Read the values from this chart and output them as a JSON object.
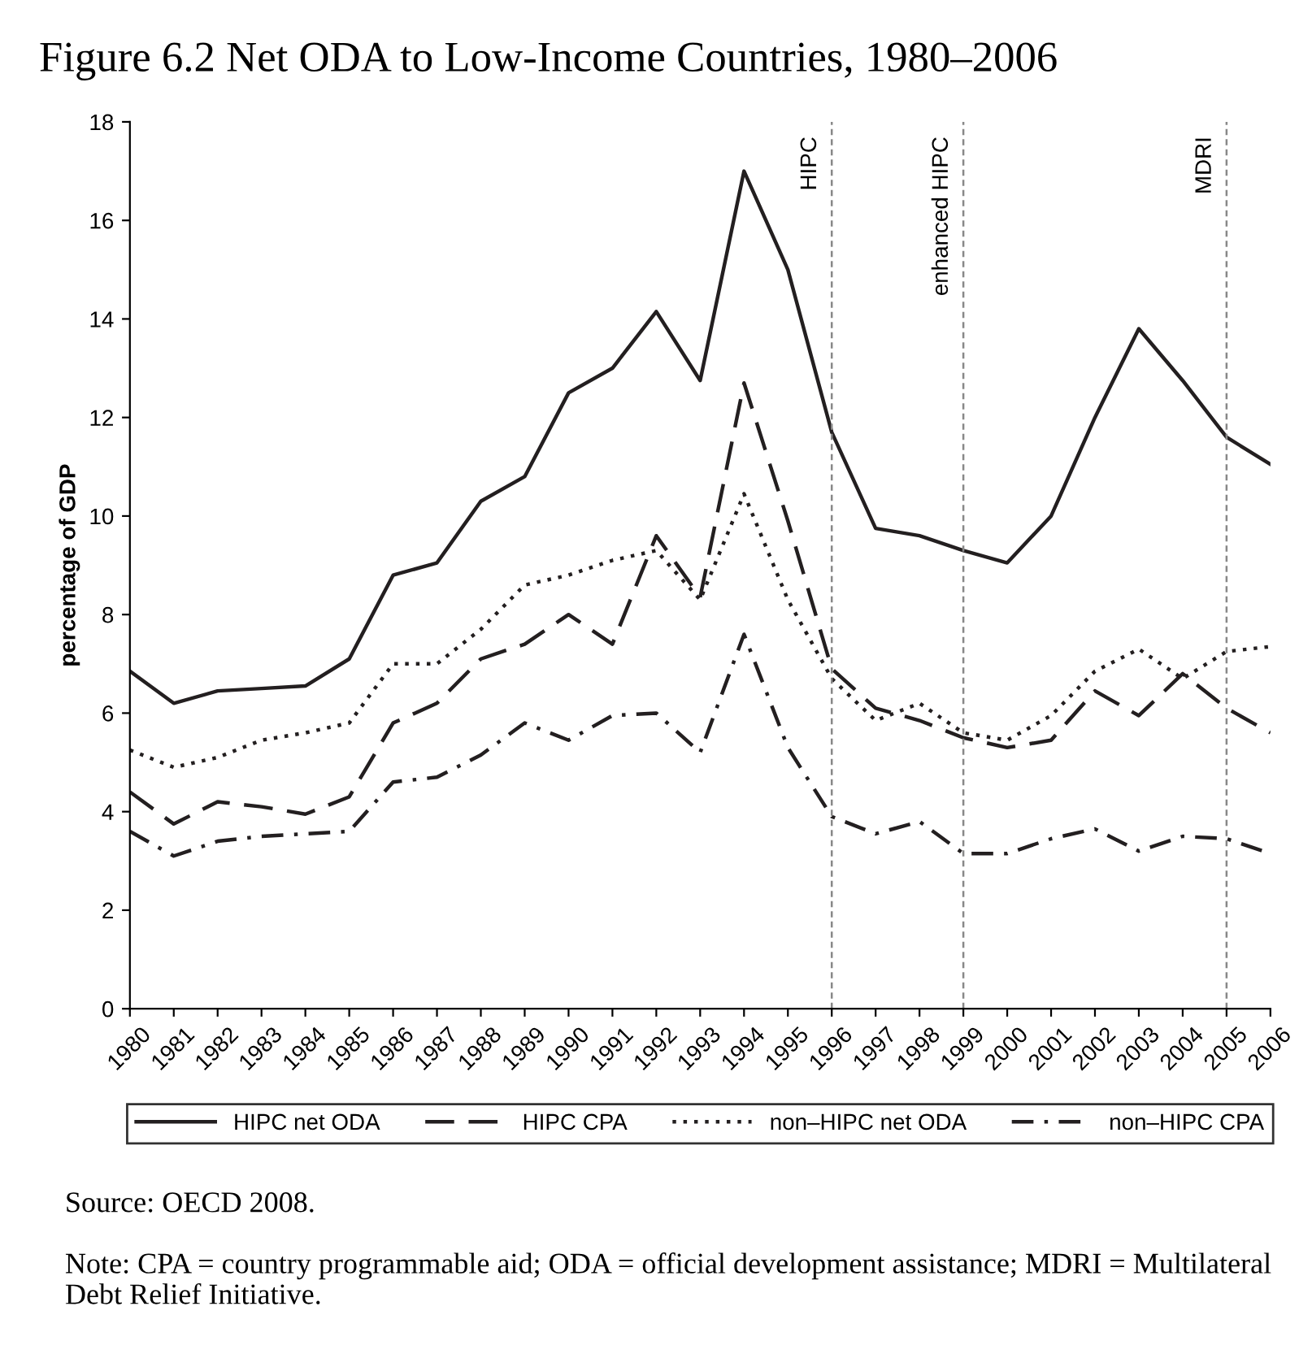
{
  "chart_data": {
    "type": "line",
    "title": "Figure 6.2 Net ODA to Low-Income Countries, 1980–2006",
    "ylabel": "percentage of GDP",
    "x": [
      1980,
      1981,
      1982,
      1983,
      1984,
      1985,
      1986,
      1987,
      1988,
      1989,
      1990,
      1991,
      1992,
      1993,
      1994,
      1995,
      1996,
      1997,
      1998,
      1999,
      2000,
      2001,
      2002,
      2003,
      2004,
      2005,
      2006
    ],
    "series": [
      {
        "name": "HIPC net ODA",
        "color": "#231f20",
        "line_style": "solid",
        "values": [
          6.85,
          6.2,
          6.45,
          6.5,
          6.55,
          7.1,
          8.8,
          9.05,
          10.3,
          10.8,
          12.5,
          13,
          14.15,
          12.75,
          17,
          15,
          11.7,
          9.75,
          9.6,
          9.3,
          9.05,
          10,
          12,
          13.8,
          12.75,
          11.6,
          11.05
        ]
      },
      {
        "name": "HIPC CPA",
        "color": "#231f20",
        "line_style": "dashed",
        "values": [
          4.4,
          3.75,
          4.2,
          4.1,
          3.95,
          4.3,
          5.8,
          6.2,
          7.1,
          7.4,
          8,
          7.4,
          9.6,
          8.35,
          12.7,
          9.9,
          6.9,
          6.1,
          5.85,
          5.5,
          5.3,
          5.45,
          6.45,
          5.95,
          6.8,
          6.1,
          5.6
        ]
      },
      {
        "name": "non–HIPC net ODA",
        "color": "#231f20",
        "line_style": "dotted",
        "values": [
          5.25,
          4.9,
          5.1,
          5.45,
          5.6,
          5.8,
          7,
          7,
          7.7,
          8.6,
          8.8,
          9.1,
          9.3,
          8.3,
          10.45,
          8.3,
          6.7,
          5.85,
          6.2,
          5.6,
          5.45,
          5.95,
          6.85,
          7.3,
          6.7,
          7.25,
          7.35
        ]
      },
      {
        "name": "non–HIPC CPA",
        "color": "#231f20",
        "line_style": "dashdot",
        "values": [
          3.6,
          3.1,
          3.4,
          3.5,
          3.55,
          3.6,
          4.6,
          4.7,
          5.15,
          5.8,
          5.45,
          5.95,
          6,
          5.2,
          7.6,
          5.3,
          3.9,
          3.55,
          3.8,
          3.15,
          3.15,
          3.45,
          3.65,
          3.2,
          3.5,
          3.45,
          3.15
        ]
      }
    ],
    "xlim": [
      1980,
      2006
    ],
    "xticks": [
      1980,
      1981,
      1982,
      1983,
      1984,
      1985,
      1986,
      1987,
      1988,
      1989,
      1990,
      1991,
      1992,
      1993,
      1994,
      1995,
      1996,
      1997,
      1998,
      1999,
      2000,
      2001,
      2002,
      2003,
      2004,
      2005,
      2006
    ],
    "ylim": [
      0,
      18
    ],
    "yticks": [
      0,
      2,
      4,
      6,
      8,
      10,
      12,
      14,
      16,
      18
    ],
    "ref_lines": [
      {
        "axis": "x",
        "value": 1996,
        "label": "HIPC",
        "color": "#888888",
        "line_style": "dashed"
      },
      {
        "axis": "x",
        "value": 1999,
        "label": "enhanced HIPC",
        "color": "#888888",
        "line_style": "dashed"
      },
      {
        "axis": "x",
        "value": 2005,
        "label": "MDRI",
        "color": "#888888",
        "line_style": "dashed"
      }
    ],
    "legend": "bottom",
    "grid": false,
    "marker": "none",
    "annotations": [
      "Source: OECD 2008.",
      "Note: CPA = country programmable aid; ODA = official development assistance; MDRI = Multilateral Debt Relief Initiative."
    ]
  }
}
